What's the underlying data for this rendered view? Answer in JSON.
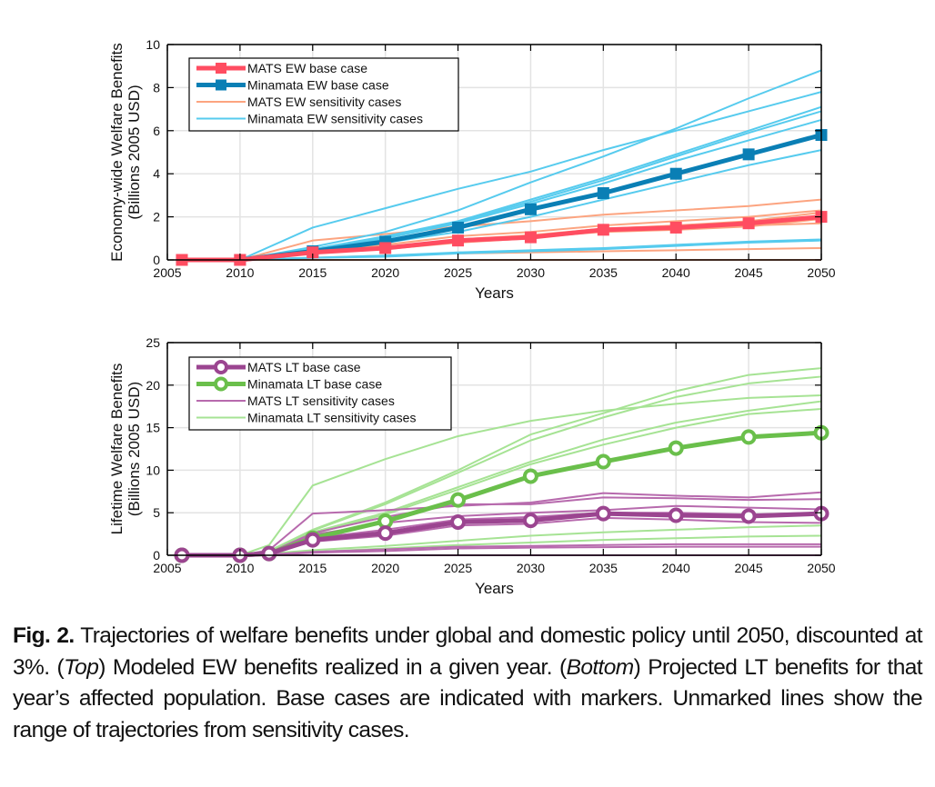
{
  "chart_data": [
    {
      "type": "line",
      "panel": "top",
      "title": "",
      "xlabel": "Years",
      "ylabel_line1": "Economy-wide Welfare Benefits",
      "ylabel_line2": "(Billions 2005 USD)",
      "xlim": [
        2005,
        2050
      ],
      "ylim": [
        0,
        10
      ],
      "xticks": [
        2005,
        2010,
        2015,
        2020,
        2025,
        2030,
        2035,
        2040,
        2045,
        2050
      ],
      "yticks": [
        0,
        2,
        4,
        6,
        8,
        10
      ],
      "grid": true,
      "legend_position": "top-left",
      "legend": [
        {
          "label": "MATS EW base case",
          "color": "#ff4d61",
          "style": "thick-square"
        },
        {
          "label": "Minamata EW base case",
          "color": "#0a7fb5",
          "style": "thick-square"
        },
        {
          "label": "MATS EW sensitivity cases",
          "color": "#fca480",
          "style": "thin"
        },
        {
          "label": "Minamata EW sensitivity cases",
          "color": "#56cbee",
          "style": "thin"
        }
      ],
      "sensitivity_series": [
        {
          "group": "MATS",
          "color": "#fca480",
          "x": [
            2010,
            2015,
            2020,
            2025,
            2030,
            2035,
            2040,
            2045,
            2050
          ],
          "values": [
            0,
            0.9,
            1.2,
            1.55,
            1.8,
            2.1,
            2.3,
            2.5,
            2.8
          ]
        },
        {
          "group": "MATS",
          "color": "#fca480",
          "x": [
            2010,
            2015,
            2020,
            2025,
            2030,
            2035,
            2040,
            2045,
            2050
          ],
          "values": [
            0,
            0.4,
            0.7,
            1.1,
            1.3,
            1.6,
            1.8,
            2.0,
            2.3
          ]
        },
        {
          "group": "MATS",
          "color": "#fca480",
          "x": [
            2010,
            2015,
            2020,
            2025,
            2030,
            2035,
            2040,
            2045,
            2050
          ],
          "values": [
            0,
            0.4,
            0.6,
            0.95,
            1.15,
            1.45,
            1.6,
            1.8,
            2.2
          ]
        },
        {
          "group": "MATS",
          "color": "#fca480",
          "x": [
            2010,
            2015,
            2020,
            2025,
            2030,
            2035,
            2040,
            2045,
            2050
          ],
          "values": [
            0,
            0.3,
            0.5,
            0.8,
            1.0,
            1.35,
            1.45,
            1.6,
            1.7
          ]
        },
        {
          "group": "MATS",
          "color": "#fca480",
          "x": [
            2010,
            2015,
            2020,
            2025,
            2030,
            2035,
            2040,
            2045,
            2050
          ],
          "values": [
            0,
            0.35,
            0.55,
            0.85,
            1.05,
            1.3,
            1.4,
            1.55,
            1.9
          ]
        },
        {
          "group": "MATS",
          "color": "#fca480",
          "x": [
            2010,
            2015,
            2020,
            2025,
            2030,
            2035,
            2040,
            2045,
            2050
          ],
          "values": [
            0,
            0.1,
            0.2,
            0.3,
            0.35,
            0.4,
            0.45,
            0.5,
            0.55
          ]
        },
        {
          "group": "MATS",
          "color": "#fca480",
          "x": [
            2010,
            2015,
            2020,
            2025,
            2030,
            2035,
            2040,
            2045,
            2050
          ],
          "values": [
            0,
            0,
            0,
            0,
            0,
            0,
            0,
            0,
            0
          ]
        },
        {
          "group": "Minamata",
          "color": "#56cbee",
          "x": [
            2010,
            2015,
            2020,
            2025,
            2030,
            2035,
            2040,
            2045,
            2050
          ],
          "values": [
            0,
            1.5,
            2.4,
            3.3,
            4.1,
            5.1,
            6.0,
            6.9,
            7.8
          ]
        },
        {
          "group": "Minamata",
          "color": "#56cbee",
          "x": [
            2010,
            2015,
            2020,
            2025,
            2030,
            2035,
            2040,
            2045,
            2050
          ],
          "values": [
            0,
            0.6,
            1.3,
            2.3,
            3.6,
            4.8,
            6.1,
            7.5,
            8.8
          ]
        },
        {
          "group": "Minamata",
          "color": "#56cbee",
          "x": [
            2010,
            2015,
            2020,
            2025,
            2030,
            2035,
            2040,
            2045,
            2050
          ],
          "values": [
            0,
            0.5,
            1.1,
            1.8,
            2.8,
            3.8,
            4.9,
            6.0,
            7.1
          ]
        },
        {
          "group": "Minamata",
          "color": "#56cbee",
          "x": [
            2010,
            2015,
            2020,
            2025,
            2030,
            2035,
            2040,
            2045,
            2050
          ],
          "values": [
            0,
            0.5,
            1.05,
            1.75,
            2.7,
            3.7,
            4.8,
            5.9,
            6.9
          ]
        },
        {
          "group": "Minamata",
          "color": "#56cbee",
          "x": [
            2010,
            2015,
            2020,
            2025,
            2030,
            2035,
            2040,
            2045,
            2050
          ],
          "values": [
            0,
            0.45,
            1.0,
            1.7,
            2.6,
            3.55,
            4.6,
            5.55,
            6.5
          ]
        },
        {
          "group": "Minamata",
          "color": "#56cbee",
          "x": [
            2010,
            2015,
            2020,
            2025,
            2030,
            2035,
            2040,
            2045,
            2050
          ],
          "values": [
            0,
            0.35,
            0.8,
            1.3,
            2.0,
            2.8,
            3.6,
            4.4,
            5.1
          ]
        },
        {
          "group": "Minamata",
          "color": "#56cbee",
          "x": [
            2010,
            2015,
            2020,
            2025,
            2030,
            2035,
            2040,
            2045,
            2050
          ],
          "values": [
            0,
            0.1,
            0.2,
            0.35,
            0.45,
            0.55,
            0.7,
            0.85,
            0.95
          ]
        },
        {
          "group": "Minamata",
          "color": "#56cbee",
          "x": [
            2010,
            2015,
            2020,
            2025,
            2030,
            2035,
            2040,
            2045,
            2050
          ],
          "values": [
            0,
            0.1,
            0.15,
            0.3,
            0.4,
            0.5,
            0.65,
            0.8,
            0.9
          ]
        }
      ],
      "base_series": [
        {
          "name": "Minamata EW base case",
          "color": "#0a7fb5",
          "marker": "square",
          "x": [
            2006,
            2010,
            2015,
            2020,
            2025,
            2030,
            2035,
            2040,
            2045,
            2050
          ],
          "values": [
            0,
            0,
            0.4,
            0.85,
            1.5,
            2.35,
            3.1,
            4.0,
            4.9,
            5.8
          ]
        },
        {
          "name": "MATS EW base case",
          "color": "#ff4d61",
          "marker": "square",
          "x": [
            2006,
            2010,
            2015,
            2020,
            2025,
            2030,
            2035,
            2040,
            2045,
            2050
          ],
          "values": [
            0,
            0,
            0.35,
            0.55,
            0.9,
            1.05,
            1.4,
            1.5,
            1.7,
            2.0
          ]
        }
      ]
    },
    {
      "type": "line",
      "panel": "bottom",
      "title": "",
      "xlabel": "Years",
      "ylabel_line1": "Lifetime Welfare Benefits",
      "ylabel_line2": "(Billions 2005 USD)",
      "xlim": [
        2005,
        2050
      ],
      "ylim": [
        0,
        25
      ],
      "xticks": [
        2005,
        2010,
        2015,
        2020,
        2025,
        2030,
        2035,
        2040,
        2045,
        2050
      ],
      "yticks": [
        0,
        5,
        10,
        15,
        20,
        25
      ],
      "grid": true,
      "legend_position": "top-left",
      "legend": [
        {
          "label": "MATS LT base case",
          "color": "#9b4590",
          "style": "thick-circle"
        },
        {
          "label": "Minamata LT base case",
          "color": "#6abf4b",
          "style": "thick-circle"
        },
        {
          "label": "MATS LT sensitivity cases",
          "color": "#b76aad",
          "style": "thin"
        },
        {
          "label": "Minamata LT sensitivity cases",
          "color": "#a6e394",
          "style": "thin"
        }
      ],
      "sensitivity_series": [
        {
          "group": "Minamata",
          "color": "#a6e394",
          "x": [
            2010,
            2012,
            2015,
            2020,
            2025,
            2030,
            2035,
            2040,
            2045,
            2050
          ],
          "values": [
            0,
            1.2,
            8.2,
            11.3,
            14.0,
            15.8,
            17.0,
            17.8,
            18.5,
            18.8
          ]
        },
        {
          "group": "Minamata",
          "color": "#a6e394",
          "x": [
            2010,
            2012,
            2015,
            2020,
            2025,
            2030,
            2035,
            2040,
            2045,
            2050
          ],
          "values": [
            0,
            0.5,
            3.0,
            6.2,
            10.0,
            14.2,
            16.7,
            19.3,
            21.2,
            22.0
          ]
        },
        {
          "group": "Minamata",
          "color": "#a6e394",
          "x": [
            2010,
            2012,
            2015,
            2020,
            2025,
            2030,
            2035,
            2040,
            2045,
            2050
          ],
          "values": [
            0,
            0.5,
            2.9,
            6.0,
            9.7,
            13.5,
            16.2,
            18.6,
            20.2,
            21.0
          ]
        },
        {
          "group": "Minamata",
          "color": "#a6e394",
          "x": [
            2010,
            2012,
            2015,
            2020,
            2025,
            2030,
            2035,
            2040,
            2045,
            2050
          ],
          "values": [
            0,
            0.4,
            2.7,
            5.0,
            8.0,
            11.0,
            13.6,
            15.6,
            17.0,
            18.1
          ]
        },
        {
          "group": "Minamata",
          "color": "#a6e394",
          "x": [
            2010,
            2012,
            2015,
            2020,
            2025,
            2030,
            2035,
            2040,
            2045,
            2050
          ],
          "values": [
            0,
            0.4,
            2.5,
            4.8,
            7.7,
            10.7,
            13.0,
            15.0,
            16.6,
            17.2
          ]
        },
        {
          "group": "Minamata",
          "color": "#a6e394",
          "x": [
            2010,
            2012,
            2015,
            2020,
            2025,
            2030,
            2035,
            2040,
            2045,
            2050
          ],
          "values": [
            0,
            0.2,
            0.6,
            1.1,
            1.7,
            2.3,
            2.7,
            3.0,
            3.3,
            3.5
          ]
        },
        {
          "group": "Minamata",
          "color": "#a6e394",
          "x": [
            2010,
            2012,
            2015,
            2020,
            2025,
            2030,
            2035,
            2040,
            2045,
            2050
          ],
          "values": [
            0,
            0.1,
            0.4,
            0.8,
            1.2,
            1.5,
            1.8,
            2.0,
            2.2,
            2.3
          ]
        },
        {
          "group": "MATS",
          "color": "#b76aad",
          "x": [
            2010,
            2012,
            2015,
            2020,
            2025,
            2030,
            2035,
            2040,
            2045,
            2050
          ],
          "values": [
            0,
            0.6,
            4.9,
            5.3,
            5.8,
            6.2,
            7.3,
            7.0,
            6.8,
            7.4
          ]
        },
        {
          "group": "MATS",
          "color": "#b76aad",
          "x": [
            2010,
            2012,
            2015,
            2020,
            2025,
            2030,
            2035,
            2040,
            2045,
            2050
          ],
          "values": [
            0,
            0.3,
            2.6,
            4.5,
            6.0,
            6.0,
            6.8,
            6.7,
            6.5,
            6.6
          ]
        },
        {
          "group": "MATS",
          "color": "#b76aad",
          "x": [
            2010,
            2012,
            2015,
            2020,
            2025,
            2030,
            2035,
            2040,
            2045,
            2050
          ],
          "values": [
            0,
            0.3,
            2.4,
            3.8,
            4.6,
            5.0,
            5.3,
            5.8,
            5.6,
            5.4
          ]
        },
        {
          "group": "MATS",
          "color": "#b76aad",
          "x": [
            2010,
            2012,
            2015,
            2020,
            2025,
            2030,
            2035,
            2040,
            2045,
            2050
          ],
          "values": [
            0,
            0.2,
            2.0,
            3.0,
            4.2,
            4.5,
            5.0,
            5.0,
            4.8,
            5.0
          ]
        },
        {
          "group": "MATS",
          "color": "#b76aad",
          "x": [
            2010,
            2012,
            2015,
            2020,
            2025,
            2030,
            2035,
            2040,
            2045,
            2050
          ],
          "values": [
            0,
            0.2,
            1.6,
            2.3,
            3.5,
            3.7,
            4.4,
            4.2,
            3.9,
            3.8
          ]
        },
        {
          "group": "MATS",
          "color": "#b76aad",
          "x": [
            2010,
            2012,
            2015,
            2020,
            2025,
            2030,
            2035,
            2040,
            2045,
            2050
          ],
          "values": [
            0,
            0.1,
            0.4,
            0.7,
            1.0,
            1.1,
            1.2,
            1.3,
            1.3,
            1.3
          ]
        },
        {
          "group": "MATS",
          "color": "#b76aad",
          "x": [
            2010,
            2012,
            2015,
            2020,
            2025,
            2030,
            2035,
            2040,
            2045,
            2050
          ],
          "values": [
            0,
            0.05,
            0.3,
            0.5,
            0.8,
            0.9,
            0.95,
            1.0,
            1.0,
            1.0
          ]
        },
        {
          "group": "MATS",
          "color": "#b76aad",
          "x": [
            2010,
            2012,
            2015,
            2020,
            2025,
            2030,
            2035,
            2040,
            2045,
            2050
          ],
          "values": [
            0,
            0,
            0,
            0,
            0,
            0,
            0,
            0,
            0,
            0
          ]
        }
      ],
      "base_series": [
        {
          "name": "Minamata LT base case",
          "color": "#6abf4b",
          "marker": "circle",
          "x": [
            2006,
            2010,
            2012,
            2015,
            2020,
            2025,
            2030,
            2035,
            2040,
            2045,
            2050
          ],
          "values": [
            0,
            0,
            0.2,
            2.0,
            4.0,
            6.5,
            9.3,
            11.0,
            12.6,
            13.9,
            14.4
          ]
        },
        {
          "name": "MATS LT base case",
          "color": "#9b4590",
          "marker": "circle",
          "x": [
            2006,
            2010,
            2012,
            2015,
            2020,
            2025,
            2030,
            2035,
            2040,
            2045,
            2050
          ],
          "values": [
            0,
            0,
            0.2,
            1.8,
            2.6,
            3.9,
            4.1,
            4.9,
            4.7,
            4.6,
            4.9
          ]
        }
      ]
    }
  ],
  "caption": {
    "fig_label": "Fig. 2.",
    "text_1": "  Trajectories of welfare benefits under global and domestic policy until 2050, discounted at 3%. (",
    "italic_1": "Top",
    "text_2": ") Modeled EW benefits realized in a given year. (",
    "italic_2": "Bottom",
    "text_3": ") Projected LT benefits for that year’s affected population. Base cases are indicated with markers. Unmarked lines show the range of trajectories from sensitivity cases."
  }
}
